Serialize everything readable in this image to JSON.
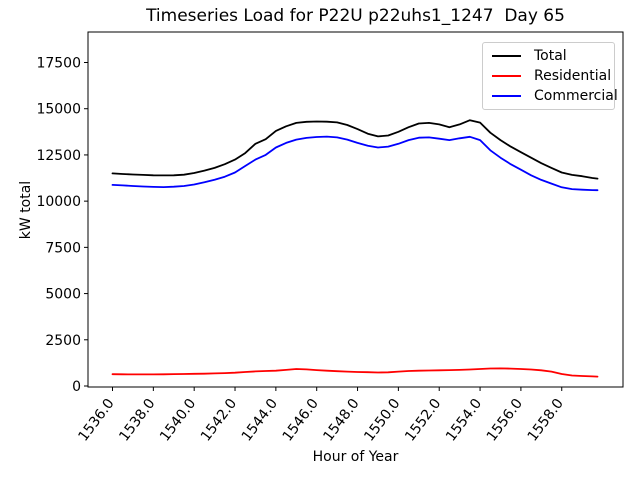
{
  "chart_data": {
    "type": "line",
    "title": "Timeseries Load for P22U p22uhs1_1247  Day 65",
    "xlabel": "Hour of Year",
    "ylabel": "kW total",
    "grid": false,
    "legend_position": "upper right",
    "xlim": [
      1534.8,
      1561.0
    ],
    "ylim": [
      -54,
      19150
    ],
    "x_ticks": {
      "values": [
        1536,
        1538,
        1540,
        1542,
        1544,
        1546,
        1548,
        1550,
        1552,
        1554,
        1556,
        1558
      ],
      "labels": [
        "1536.0",
        "1538.0",
        "1540.0",
        "1542.0",
        "1544.0",
        "1546.0",
        "1548.0",
        "1550.0",
        "1552.0",
        "1554.0",
        "1556.0",
        "1558.0"
      ]
    },
    "y_ticks": {
      "values": [
        0,
        2500,
        5000,
        7500,
        10000,
        12500,
        15000,
        17500
      ],
      "labels": [
        "0",
        "2500",
        "5000",
        "7500",
        "10000",
        "12500",
        "15000",
        "17500"
      ]
    },
    "x": [
      1536.0,
      1536.5,
      1537.0,
      1537.5,
      1538.0,
      1538.5,
      1539.0,
      1539.5,
      1540.0,
      1540.5,
      1541.0,
      1541.5,
      1542.0,
      1542.5,
      1543.0,
      1543.5,
      1544.0,
      1544.5,
      1545.0,
      1545.5,
      1546.0,
      1546.5,
      1547.0,
      1547.5,
      1548.0,
      1548.5,
      1549.0,
      1549.5,
      1550.0,
      1550.5,
      1551.0,
      1551.5,
      1552.0,
      1552.5,
      1553.0,
      1553.5,
      1554.0,
      1554.5,
      1555.0,
      1555.5,
      1556.0,
      1556.5,
      1557.0,
      1557.5,
      1558.0,
      1558.5,
      1559.0,
      1559.5,
      1559.75
    ],
    "series": [
      {
        "name": "Total",
        "color": "#000000",
        "values": [
          11500,
          11470,
          11440,
          11420,
          11400,
          11390,
          11400,
          11430,
          11520,
          11650,
          11800,
          12000,
          12250,
          12600,
          13100,
          13350,
          13800,
          14050,
          14230,
          14290,
          14310,
          14300,
          14260,
          14120,
          13900,
          13650,
          13500,
          13550,
          13750,
          14000,
          14200,
          14230,
          14150,
          14000,
          14150,
          14380,
          14250,
          13700,
          13300,
          12950,
          12650,
          12350,
          12050,
          11800,
          11550,
          11420,
          11350,
          11250,
          11220
        ]
      },
      {
        "name": "Residential",
        "color": "#ff0000",
        "values": [
          640,
          635,
          630,
          628,
          630,
          635,
          645,
          650,
          660,
          665,
          680,
          700,
          720,
          755,
          790,
          810,
          830,
          870,
          920,
          900,
          860,
          830,
          800,
          780,
          760,
          745,
          730,
          740,
          780,
          810,
          830,
          840,
          850,
          860,
          870,
          890,
          920,
          945,
          950,
          940,
          920,
          890,
          850,
          780,
          650,
          570,
          540,
          520,
          510
        ]
      },
      {
        "name": "Commercial",
        "color": "#0000ff",
        "values": [
          10880,
          10850,
          10820,
          10790,
          10770,
          10760,
          10780,
          10820,
          10900,
          11020,
          11160,
          11320,
          11550,
          11900,
          12250,
          12500,
          12900,
          13150,
          13330,
          13420,
          13470,
          13490,
          13450,
          13330,
          13150,
          13000,
          12900,
          12950,
          13100,
          13300,
          13430,
          13450,
          13380,
          13300,
          13400,
          13480,
          13300,
          12750,
          12350,
          12000,
          11700,
          11400,
          11150,
          10950,
          10750,
          10650,
          10620,
          10600,
          10590
        ]
      }
    ]
  }
}
